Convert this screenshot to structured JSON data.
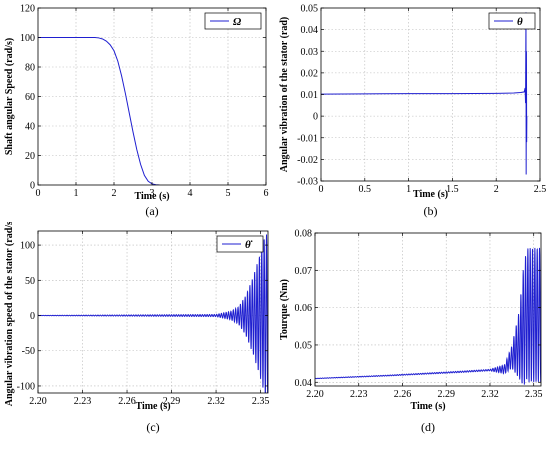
{
  "chart_data": [
    {
      "id": "a",
      "type": "line",
      "caption": "(a)",
      "xlabel": "Time (s)",
      "ylabel": "Shaft angular Speed (rad/s)",
      "xlim": [
        0,
        6
      ],
      "ylim": [
        0,
        120
      ],
      "xticks": [
        0,
        1,
        2,
        3,
        4,
        5,
        6
      ],
      "yticks": [
        0,
        20,
        40,
        60,
        80,
        100,
        120
      ],
      "xtick_labels": [
        "0",
        "1",
        "2",
        "3",
        "4",
        "5",
        "6"
      ],
      "ytick_labels": [
        "0",
        "20",
        "40",
        "60",
        "80",
        "100",
        "120"
      ],
      "grid": true,
      "legend_position": "top-right",
      "series": [
        {
          "name": "Ω",
          "color": "#1f1fd0",
          "x": [
            0,
            1.5,
            1.6,
            1.7,
            1.8,
            1.9,
            2.0,
            2.1,
            2.2,
            2.3,
            2.4,
            2.5,
            2.6,
            2.7,
            2.8,
            2.9,
            3.0,
            3.1,
            3.2
          ],
          "y": [
            100,
            100,
            99.7,
            99,
            97.5,
            95,
            91,
            84,
            74,
            62,
            49,
            36,
            24,
            14,
            6.5,
            2.5,
            0.8,
            0.2,
            0
          ]
        }
      ]
    },
    {
      "id": "b",
      "type": "line",
      "caption": "(b)",
      "xlabel": "Time (s)",
      "ylabel": "Angular vibration of the stator (rad)",
      "xlim": [
        0,
        2.5
      ],
      "ylim": [
        -0.03,
        0.05
      ],
      "xticks": [
        0,
        0.5,
        1,
        1.5,
        2,
        2.5
      ],
      "yticks": [
        -0.03,
        -0.02,
        -0.01,
        0,
        0.01,
        0.02,
        0.03,
        0.04,
        0.05
      ],
      "xtick_labels": [
        "0",
        "0.5",
        "1",
        "1.5",
        "2",
        "2.5"
      ],
      "ytick_labels": [
        "-0.03",
        "-0.02",
        "-0.01",
        "0",
        "0.01",
        "0.02",
        "0.03",
        "0.04",
        "0.05"
      ],
      "grid": true,
      "legend_position": "top-right",
      "series": [
        {
          "name": "θ",
          "color": "#1f1fd0",
          "x": [
            0,
            0.5,
            1.0,
            1.5,
            2.0,
            2.2,
            2.28,
            2.32,
            2.33,
            2.335,
            2.34,
            2.342,
            2.345,
            2.348,
            2.35
          ],
          "y": [
            0.0102,
            0.0103,
            0.0104,
            0.0104,
            0.0105,
            0.0107,
            0.0109,
            0.0112,
            0.013,
            0.006,
            0.048,
            -0.027,
            0.03,
            -0.012,
            0.0
          ]
        }
      ]
    },
    {
      "id": "c",
      "type": "line",
      "caption": "(c)",
      "xlabel": "Time (s)",
      "ylabel": "Angular vibration speed of the stator (rad/s)",
      "xlim": [
        2.2,
        2.355
      ],
      "ylim": [
        -110,
        120
      ],
      "xticks": [
        2.2,
        2.23,
        2.26,
        2.29,
        2.32,
        2.35
      ],
      "yticks": [
        -100,
        -50,
        0,
        50,
        100
      ],
      "xtick_labels": [
        "2.20",
        "2.23",
        "2.26",
        "2.29",
        "2.32",
        "2.35"
      ],
      "ytick_labels": [
        "-100",
        "-50",
        "0",
        "50",
        "100"
      ],
      "grid": true,
      "legend_position": "top-right",
      "series": [
        {
          "name": "θ̇",
          "color": "#1f1fd0",
          "oscillation": {
            "base": 0,
            "period_s": 0.0016,
            "amplitude_points": [
              [
                2.2,
                0.2
              ],
              [
                2.32,
                1.5
              ],
              [
                2.33,
                6
              ],
              [
                2.335,
                12
              ],
              [
                2.34,
                28
              ],
              [
                2.345,
                55
              ],
              [
                2.35,
                90
              ],
              [
                2.353,
                115
              ],
              [
                2.355,
                115
              ]
            ]
          }
        }
      ]
    },
    {
      "id": "d",
      "type": "line",
      "caption": "(d)",
      "xlabel": "Time (s)",
      "ylabel": "Tourque (Nm)",
      "xlim": [
        2.2,
        2.355
      ],
      "ylim": [
        0.039,
        0.08
      ],
      "xticks": [
        2.2,
        2.23,
        2.26,
        2.29,
        2.32,
        2.35
      ],
      "yticks": [
        0.04,
        0.05,
        0.06,
        0.07,
        0.08
      ],
      "xtick_labels": [
        "2.20",
        "2.23",
        "2.26",
        "2.29",
        "2.32",
        "2.35"
      ],
      "ytick_labels": [
        "0.04",
        "0.05",
        "0.06",
        "0.07",
        "0.08"
      ],
      "grid": true,
      "series": [
        {
          "name": "",
          "color": "#1f1fd0",
          "oscillation": {
            "base_points": [
              [
                2.2,
                0.041
              ],
              [
                2.25,
                0.0418
              ],
              [
                2.3,
                0.0428
              ],
              [
                2.33,
                0.0435
              ],
              [
                2.34,
                0.05
              ],
              [
                2.345,
                0.058
              ],
              [
                2.35,
                0.058
              ],
              [
                2.355,
                0.058
              ]
            ],
            "period_s": 0.0016,
            "amplitude_points": [
              [
                2.2,
                5e-05
              ],
              [
                2.32,
                0.0002
              ],
              [
                2.33,
                0.0012
              ],
              [
                2.335,
                0.003
              ],
              [
                2.34,
                0.009
              ],
              [
                2.343,
                0.016
              ],
              [
                2.346,
                0.018
              ],
              [
                2.355,
                0.018
              ]
            ]
          }
        }
      ]
    }
  ]
}
